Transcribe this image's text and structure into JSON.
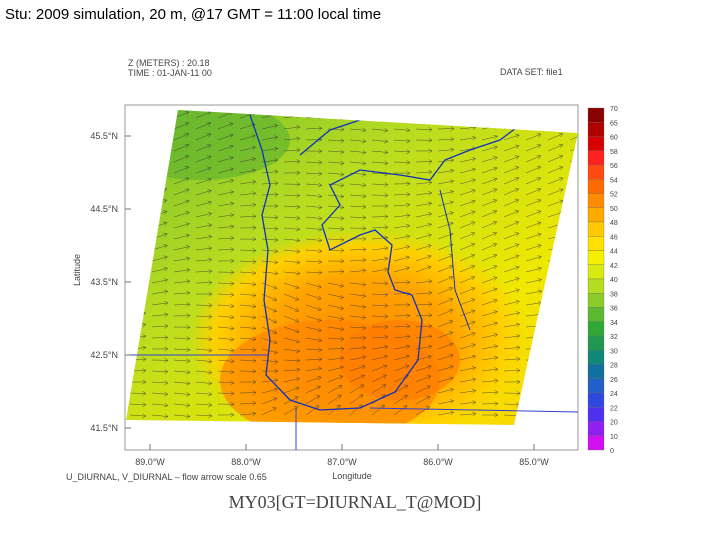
{
  "title": "Stu: 2009 simulation, 20 m, @17 GMT = 11:00 local time",
  "plot": {
    "header_left": [
      "Z (METERS) : 20.18",
      "TIME : 01-JAN-11 00"
    ],
    "header_right": "DATA SET: file1",
    "y_label": "Latitude",
    "y_ticks": [
      "45.5°N",
      "44.5°N",
      "43.5°N",
      "42.5°N",
      "41.5°N"
    ],
    "x_label": "Longitude",
    "x_ticks": [
      "89.0°W",
      "88.0°W",
      "87.0°W",
      "86.0°W",
      "85.0°W"
    ],
    "arrow_caption": "U_DIURNAL, V_DIURNAL – flow arrow scale 0.65",
    "footer": "MY03[GT=DIURNAL_T@MOD]"
  },
  "colorbar": {
    "labels": [
      "70",
      "65",
      "60",
      "58",
      "56",
      "54",
      "52",
      "50",
      "48",
      "46",
      "44",
      "42",
      "40",
      "38",
      "36",
      "34",
      "32",
      "30",
      "28",
      "26",
      "24",
      "22",
      "20",
      "10",
      "0"
    ],
    "colors": [
      "#8b0000",
      "#b00000",
      "#d80000",
      "#ff2020",
      "#ff4a10",
      "#ff6a00",
      "#ff8c00",
      "#ffaa00",
      "#ffc800",
      "#ffe000",
      "#f5f000",
      "#d8ea10",
      "#b4dc20",
      "#8ccc28",
      "#5cb830",
      "#30a838",
      "#209850",
      "#108878",
      "#1070a0",
      "#2060c8",
      "#3048e0",
      "#5030f0",
      "#9020f0",
      "#d010f0"
    ]
  }
}
